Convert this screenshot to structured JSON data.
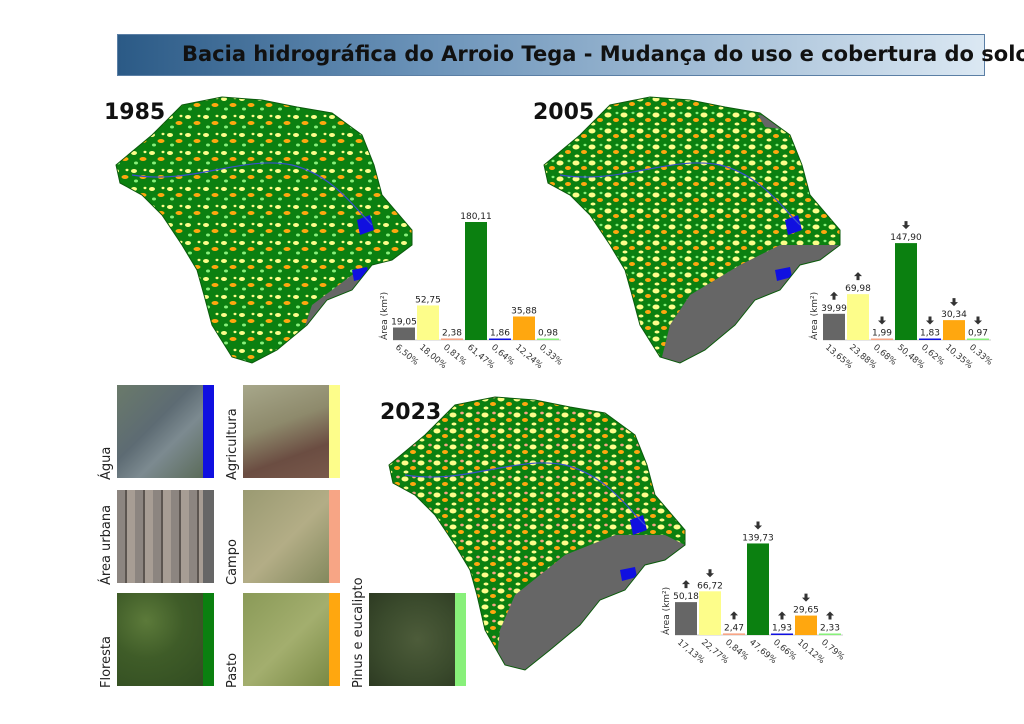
{
  "title": "Bacia hidrográfica do Arroio Tega - Mudança do uso e cobertura do solo",
  "colors": {
    "area_urbana": "#666666",
    "agricultura": "#fdfd8a",
    "campo": "#f7a585",
    "floresta": "#0b8010",
    "agua": "#1010e0",
    "pasto": "#ffa70f",
    "pinus": "#88f07a"
  },
  "legend": {
    "agua": "Água",
    "agricultura": "Agricultura",
    "area_urbana": "Área urbana",
    "campo": "Campo",
    "floresta": "Floresta",
    "pasto": "Pasto",
    "pinus": "Pinus e eucalipto"
  },
  "chart_data": [
    {
      "type": "bar",
      "year": "1985",
      "ylabel": "Área (km²)",
      "categories": [
        "Área urbana",
        "Agricultura",
        "Campo",
        "Floresta",
        "Água",
        "Pasto",
        "Pinus e eucalipto"
      ],
      "values": [
        19.05,
        52.75,
        2.38,
        180.11,
        1.86,
        35.88,
        0.98
      ],
      "value_labels": [
        "19,05",
        "52,75",
        "2,38",
        "180,11",
        "1,86",
        "35,88",
        "0,98"
      ],
      "percent_labels": [
        "6,50%",
        "18,00%",
        "0,81%",
        "61,47%",
        "0,64%",
        "12,24%",
        "0,33%"
      ],
      "trend": [
        null,
        null,
        null,
        null,
        null,
        null,
        null
      ]
    },
    {
      "type": "bar",
      "year": "2005",
      "ylabel": "Área (km²)",
      "categories": [
        "Área urbana",
        "Agricultura",
        "Campo",
        "Floresta",
        "Água",
        "Pasto",
        "Pinus e eucalipto"
      ],
      "values": [
        39.99,
        69.98,
        1.99,
        147.9,
        1.83,
        30.34,
        0.97
      ],
      "value_labels": [
        "39,99",
        "69,98",
        "1,99",
        "147,90",
        "1,83",
        "30,34",
        "0,97"
      ],
      "percent_labels": [
        "13,65%",
        "23,88%",
        "0,68%",
        "50,48%",
        "0,62%",
        "10,35%",
        "0,33%"
      ],
      "trend": [
        "up",
        "up",
        "down",
        "down",
        "down",
        "down",
        "down"
      ]
    },
    {
      "type": "bar",
      "year": "2023",
      "ylabel": "Área (km²)",
      "categories": [
        "Área urbana",
        "Agricultura",
        "Campo",
        "Floresta",
        "Água",
        "Pasto",
        "Pinus e eucalipto"
      ],
      "values": [
        50.18,
        66.72,
        2.47,
        139.73,
        1.93,
        29.65,
        2.33
      ],
      "value_labels": [
        "50,18",
        "66,72",
        "2,47",
        "139,73",
        "1,93",
        "29,65",
        "2,33"
      ],
      "percent_labels": [
        "17,13%",
        "22,77%",
        "0,84%",
        "47,69%",
        "0,66%",
        "10,12%",
        "0,79%"
      ],
      "trend": [
        "up",
        "down",
        "up",
        "down",
        "up",
        "down",
        "up"
      ]
    }
  ]
}
